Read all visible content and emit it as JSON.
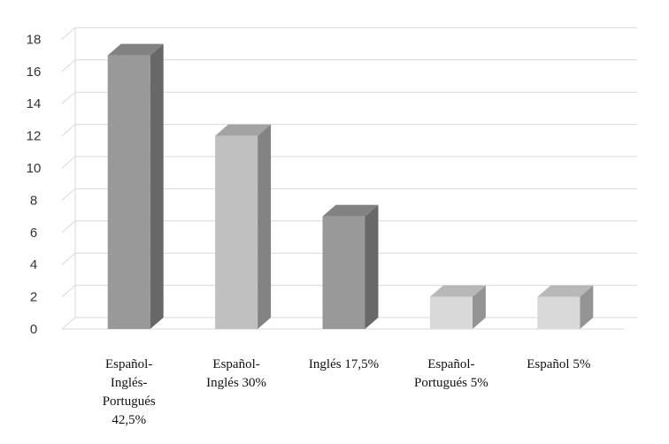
{
  "chart_data": {
    "type": "bar",
    "style": "3d-column",
    "categories": [
      [
        "Español-",
        "Inglés-",
        "Portugués",
        "42,5%"
      ],
      [
        "Español-",
        "Inglés 30%"
      ],
      [
        "Inglés 17,5%"
      ],
      [
        "Español-",
        "Portugués 5%"
      ],
      [
        "Español 5%"
      ]
    ],
    "values": [
      17,
      12,
      7,
      2,
      2
    ],
    "bar_colors": [
      "#999999",
      "#c0c0c0",
      "#999999",
      "#d9d9d9",
      "#d9d9d9"
    ],
    "ylim": [
      0,
      18
    ],
    "yticks": [
      0,
      2,
      4,
      6,
      8,
      10,
      12,
      14,
      16,
      18
    ],
    "grid": true,
    "legend": "none",
    "title": "",
    "xlabel": "",
    "ylabel": ""
  }
}
